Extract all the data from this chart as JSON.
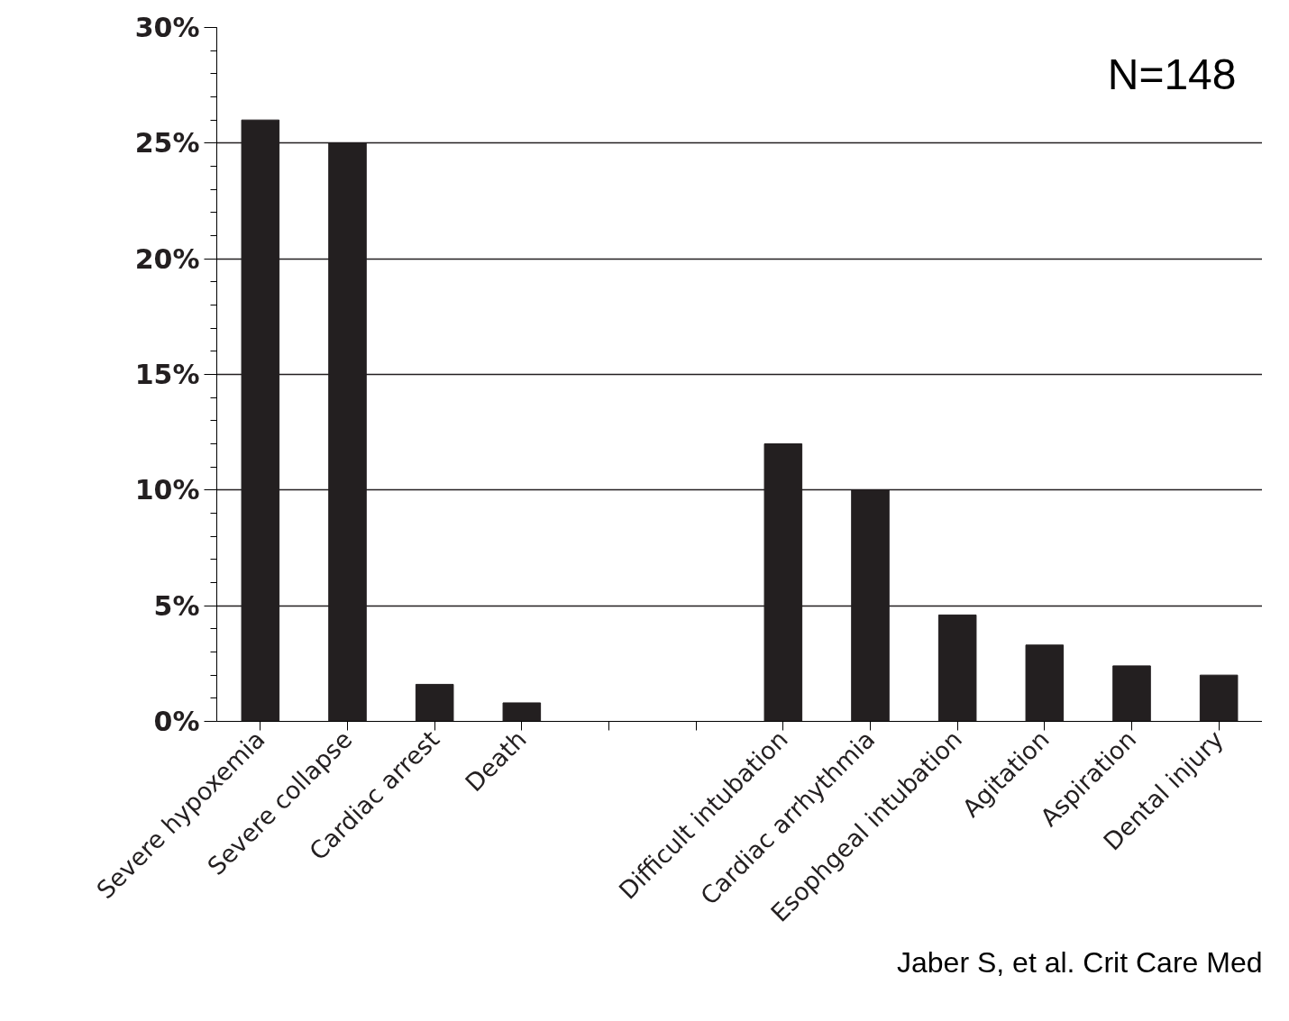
{
  "chart_data": {
    "type": "bar",
    "categories": [
      "Severe hypoxemia",
      "Severe collapse",
      "Cardiac arrest",
      "Death",
      null,
      null,
      "Difficult intubation",
      "Cardiac arrhythmia",
      "Esophgeal intubation",
      "Agitation",
      "Aspiration",
      "Dental injury"
    ],
    "values": [
      26,
      25,
      1.6,
      0.8,
      null,
      null,
      12,
      10,
      4.6,
      3.3,
      2.4,
      2.0
    ],
    "color": "#231f20",
    "ylim": [
      0,
      30
    ],
    "yticks": [
      {
        "value": 0,
        "label": "0%"
      },
      {
        "value": 5,
        "label": "5%"
      },
      {
        "value": 10,
        "label": "10%"
      },
      {
        "value": 15,
        "label": "15%"
      },
      {
        "value": 20,
        "label": "20%"
      },
      {
        "value": 25,
        "label": "25%"
      },
      {
        "value": 30,
        "label": "30%"
      }
    ],
    "grid": "y",
    "annotations": [
      "N=148",
      "Jaber S, et al. Crit Care Med"
    ]
  }
}
